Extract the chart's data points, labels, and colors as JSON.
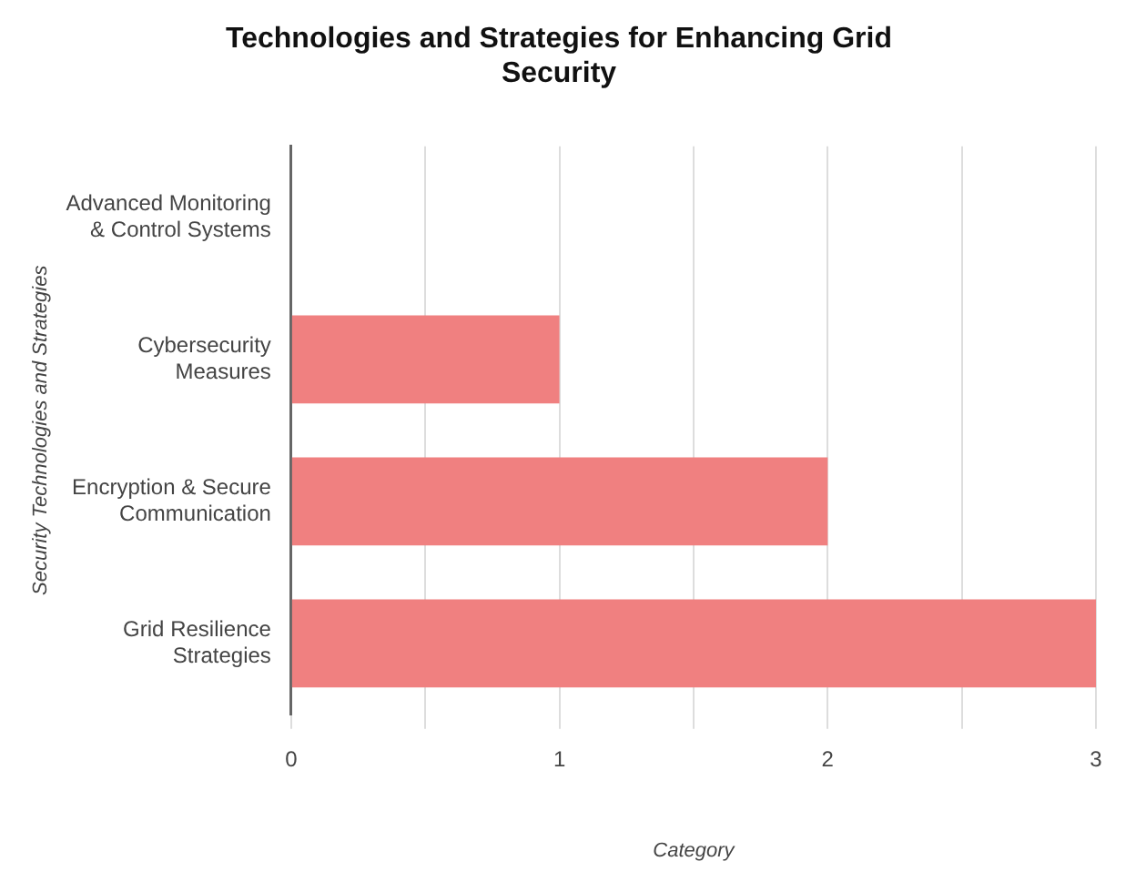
{
  "chart_data": {
    "type": "bar",
    "orientation": "horizontal",
    "title": "Technologies and Strategies for Enhancing Grid Security",
    "xlabel": "Category",
    "ylabel": "Security Technologies and Strategies",
    "categories": [
      "Advanced Monitoring & Control Systems",
      "Cybersecurity Measures",
      "Encryption & Secure Communication",
      "Grid Resilience Strategies"
    ],
    "values": [
      0,
      1,
      2,
      3
    ],
    "color": "#f08080",
    "xlim": [
      0,
      3
    ],
    "xticks": [
      0,
      {
        "value": 0.5,
        "label": null
      },
      1,
      {
        "value": 1.5,
        "label": null
      },
      2,
      {
        "value": 2.5,
        "label": null
      },
      3
    ],
    "grid": "x",
    "legend": false
  }
}
